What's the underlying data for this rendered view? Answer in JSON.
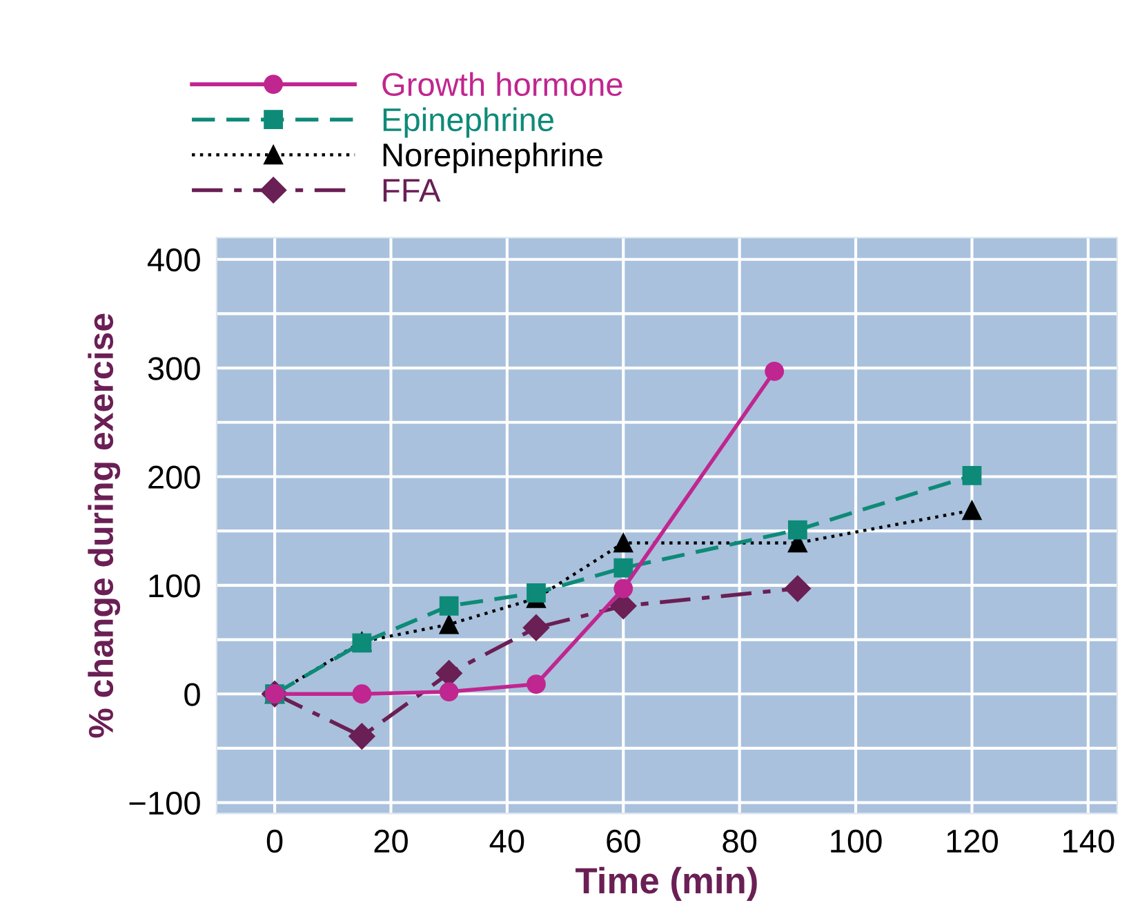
{
  "chart_data": {
    "type": "line",
    "xlabel": "Time (min)",
    "ylabel": "% change during exercise",
    "xlim": [
      -10,
      145
    ],
    "ylim": [
      -110,
      420
    ],
    "xticks": [
      0,
      20,
      40,
      60,
      80,
      100,
      120,
      140
    ],
    "yticks": [
      {
        "value": -100,
        "label": "−100"
      },
      {
        "value": -50,
        "label": null
      },
      0,
      {
        "value": 50,
        "label": null
      },
      100,
      {
        "value": 150,
        "label": null
      },
      200,
      {
        "value": 250,
        "label": null
      },
      300,
      {
        "value": 350,
        "label": null
      },
      400
    ],
    "grid": true,
    "legend": "top left",
    "series": [
      {
        "name": "Growth hormone",
        "color": "#c0268f",
        "marker": "circle",
        "line_style": "solid",
        "x": [
          0,
          15,
          30,
          45,
          60,
          86
        ],
        "values": [
          0,
          0,
          2,
          9,
          97,
          297
        ]
      },
      {
        "name": "Epinephrine",
        "color": "#0e8a78",
        "marker": "square",
        "line_style": "dashed",
        "x": [
          0,
          15,
          30,
          45,
          60,
          90,
          120
        ],
        "values": [
          0,
          47,
          81,
          93,
          116,
          151,
          201
        ]
      },
      {
        "name": "Norepinephrine",
        "color": "#000000",
        "marker": "triangle",
        "line_style": "dotted",
        "x": [
          0,
          15,
          30,
          45,
          60,
          90,
          120
        ],
        "values": [
          0,
          48,
          64,
          88,
          139,
          139,
          169
        ]
      },
      {
        "name": "FFA",
        "color": "#6a1f55",
        "marker": "diamond",
        "line_style": "dashdot",
        "x": [
          0,
          15,
          30,
          45,
          60,
          90
        ],
        "values": [
          0,
          -39,
          19,
          61,
          81,
          97
        ]
      }
    ]
  }
}
